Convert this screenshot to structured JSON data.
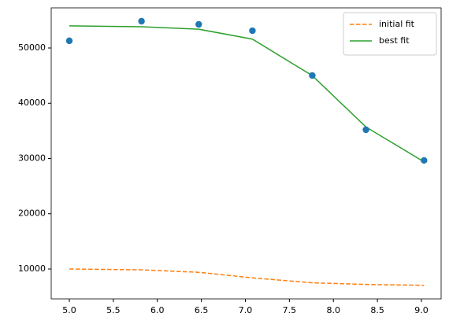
{
  "chart_data": {
    "type": "line",
    "points": {
      "x": [
        5.0,
        5.82,
        6.47,
        7.08,
        7.76,
        8.37,
        9.03
      ],
      "y": [
        51300,
        54840,
        54270,
        53130,
        45020,
        35200,
        29650
      ],
      "color": "#1f77b4"
    },
    "x": [
      5.0,
      5.82,
      6.47,
      7.08,
      7.76,
      8.37,
      9.03
    ],
    "series": [
      {
        "name": "initial fit",
        "color": "#ff7f0e",
        "dash": true,
        "values": [
          10000,
          9850,
          9400,
          8400,
          7500,
          7200,
          7050
        ]
      },
      {
        "name": "best fit",
        "color": "#2ca02c",
        "dash": false,
        "values": [
          54000,
          53850,
          53400,
          51600,
          45000,
          35700,
          29400
        ]
      }
    ],
    "xlim": [
      4.794,
      9.224
    ],
    "ylim": [
      4590,
      57260
    ],
    "xticks": [
      {
        "value": 5.0,
        "label": "5.0"
      },
      {
        "value": 5.5,
        "label": "5.5"
      },
      {
        "value": 6.0,
        "label": "6.0"
      },
      {
        "value": 6.5,
        "label": "6.5"
      },
      {
        "value": 7.0,
        "label": "7.0"
      },
      {
        "value": 7.5,
        "label": "7.5"
      },
      {
        "value": 8.0,
        "label": "8.0"
      },
      {
        "value": 8.5,
        "label": "8.5"
      },
      {
        "value": 9.0,
        "label": "9.0"
      }
    ],
    "yticks": [
      10000,
      20000,
      30000,
      40000,
      50000
    ],
    "legend": "upper right"
  }
}
